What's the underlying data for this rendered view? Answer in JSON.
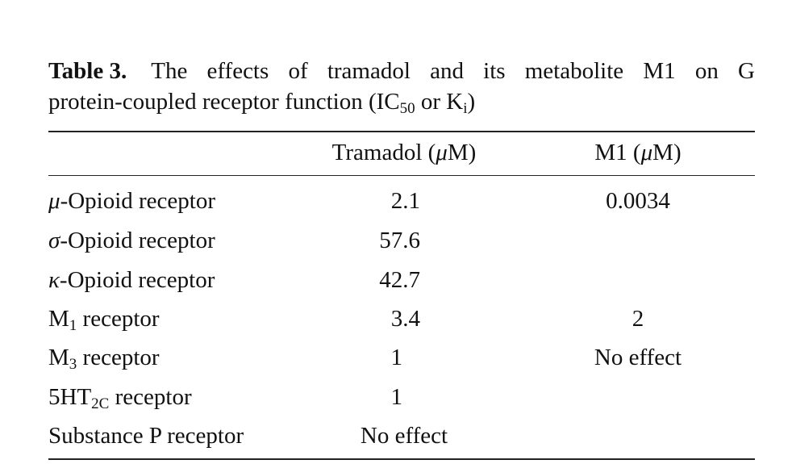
{
  "caption": {
    "label": "Table 3.",
    "line1_words": [
      "The",
      "effects",
      "of",
      "tramadol",
      "and",
      "its",
      "metabolite",
      "M1",
      "on",
      "G"
    ],
    "line2_pre": "protein-coupled receptor function (IC",
    "line2_sub1": "50",
    "line2_mid": " or K",
    "line2_sub2": "i",
    "line2_post": ")"
  },
  "table": {
    "headers": {
      "col2_pre": "Tramadol (",
      "col2_greek": "μ",
      "col2_post": "M)",
      "col3_pre": "M1 (",
      "col3_greek": "μ",
      "col3_post": "M)"
    },
    "rows": [
      {
        "greek": "μ",
        "rest": "-Opioid receptor",
        "tramadol": "2.1",
        "m1": "0.0034"
      },
      {
        "greek": "σ",
        "rest": "-Opioid receptor",
        "tramadol": "57.6",
        "m1": ""
      },
      {
        "greek": "κ",
        "rest": "-Opioid receptor",
        "tramadol": "42.7",
        "m1": ""
      },
      {
        "pre": "M",
        "sub": "1",
        "rest": " receptor",
        "tramadol": "3.4",
        "m1": "2"
      },
      {
        "pre": "M",
        "sub": "3",
        "rest": " receptor",
        "tramadol": "1",
        "m1": "No effect"
      },
      {
        "pre": "5HT",
        "sub": "2C",
        "rest": " receptor",
        "tramadol": "1",
        "m1": ""
      },
      {
        "pre": "Substance P receptor",
        "tramadol": "No effect",
        "m1": ""
      }
    ]
  }
}
